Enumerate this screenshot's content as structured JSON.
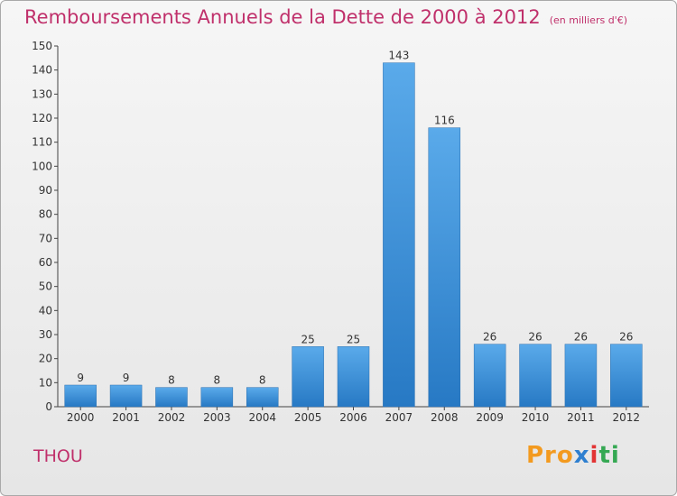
{
  "chart_data": {
    "type": "bar",
    "title": "Remboursements Annuels de la Dette de 2000 à 2012",
    "subtitle": "(en milliers d'€)",
    "categories": [
      "2000",
      "2001",
      "2002",
      "2003",
      "2004",
      "2005",
      "2006",
      "2007",
      "2008",
      "2009",
      "2010",
      "2011",
      "2012"
    ],
    "values": [
      9,
      9,
      8,
      8,
      8,
      25,
      25,
      143,
      116,
      26,
      26,
      26,
      26
    ],
    "ylim": [
      0,
      150
    ],
    "yticks": [
      0,
      10,
      20,
      30,
      40,
      50,
      60,
      70,
      80,
      90,
      100,
      110,
      120,
      130,
      140,
      150
    ],
    "grid": false,
    "colors": {
      "bar_top": "#5aaaea",
      "bar_bottom": "#2779c4",
      "title": "#c0306b"
    }
  },
  "commune": "THOU",
  "logo": {
    "p1": "Pro",
    "p2": "x",
    "p3": "i",
    "p4": "ti"
  }
}
